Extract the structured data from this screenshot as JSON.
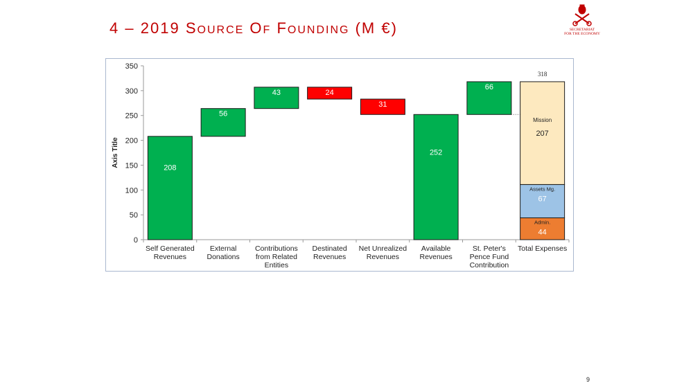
{
  "slide": {
    "title": "4 – 2019 Source of Founding (M €)",
    "page_number": "9",
    "logo_line1": "SECRETARIAT",
    "logo_line2": "FOR THE ECONOMY"
  },
  "colors": {
    "title": "#c00000",
    "positive": "#00b050",
    "negative": "#ff0000",
    "mission": "#fde9bf",
    "assets": "#9dc3e6",
    "admin": "#ed7d31"
  },
  "chart_data": {
    "type": "bar",
    "subtype": "waterfall",
    "ylabel": "Axis Title",
    "ylim": [
      0,
      350
    ],
    "yticks": [
      0,
      50,
      100,
      150,
      200,
      250,
      300,
      350
    ],
    "categories": [
      "Self Generated Revenues",
      "External Donations",
      "Contributions from Related Entities",
      "Destinated Revenues",
      "Net Unrealized Revenues",
      "Available Revenues",
      "St. Peter's Pence Fund Contribution",
      "Total  Expenses"
    ],
    "category_label_lines": [
      [
        "Self Generated",
        "Revenues"
      ],
      [
        "External",
        "Donations"
      ],
      [
        "Contributions",
        "from Related",
        "Entities"
      ],
      [
        "Destinated",
        "Revenues"
      ],
      [
        "Net Unrealized",
        "Revenues"
      ],
      [
        "Available",
        "Revenues"
      ],
      [
        "St. Peter's",
        "Pence Fund",
        "Contribution"
      ],
      [
        "Total  Expenses"
      ]
    ],
    "waterfall": [
      {
        "category": "Self Generated Revenues",
        "base": 0,
        "top": 208,
        "value": 208,
        "kind": "positive"
      },
      {
        "category": "External Donations",
        "base": 208,
        "top": 264,
        "value": 56,
        "kind": "positive"
      },
      {
        "category": "Contributions from Related Entities",
        "base": 264,
        "top": 307,
        "value": 43,
        "kind": "positive"
      },
      {
        "category": "Destinated Revenues",
        "base": 283,
        "top": 307,
        "value": 24,
        "kind": "negative"
      },
      {
        "category": "Net Unrealized Revenues",
        "base": 252,
        "top": 283,
        "value": 31,
        "kind": "negative"
      },
      {
        "category": "Available Revenues",
        "base": 0,
        "top": 252,
        "value": 252,
        "kind": "positive"
      },
      {
        "category": "St. Peter's Pence Fund Contribution",
        "base": 252,
        "top": 318,
        "value": 66,
        "kind": "positive"
      }
    ],
    "stacked_total": {
      "category": "Total  Expenses",
      "total": 318,
      "series": [
        {
          "name": "Admin.",
          "value": 44,
          "color_key": "admin"
        },
        {
          "name": "Assets Mg.",
          "value": 67,
          "color_key": "assets"
        },
        {
          "name": "Mission",
          "value": 207,
          "color_key": "mission"
        }
      ]
    }
  }
}
